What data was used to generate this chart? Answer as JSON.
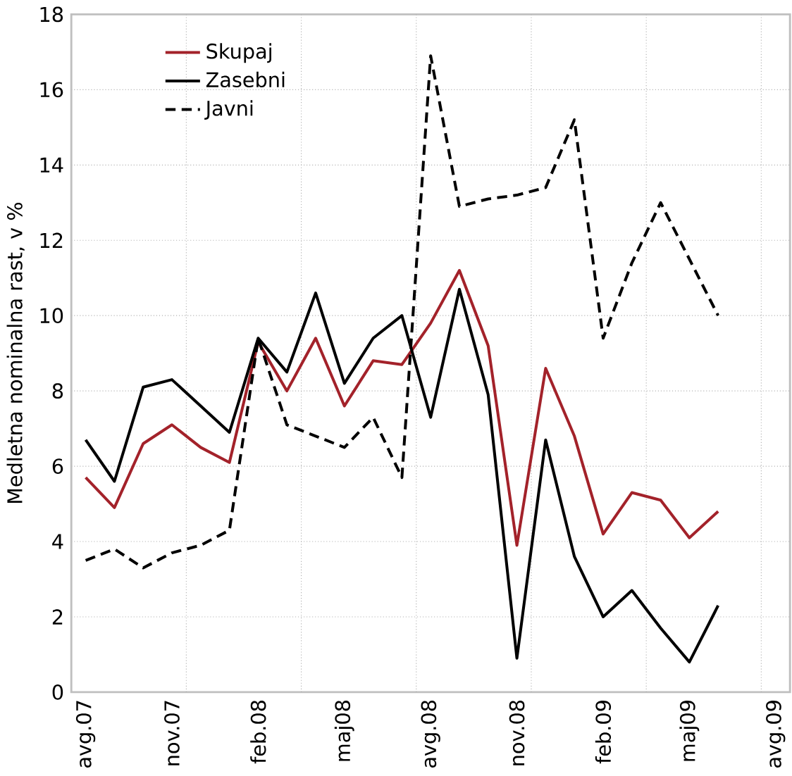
{
  "chart_data": {
    "type": "line",
    "ylabel": "Medletna nominalna rast, v %",
    "categories": [
      "avg.07",
      null,
      null,
      "nov.07",
      null,
      null,
      "feb.08",
      null,
      null,
      "maj08",
      null,
      null,
      "avg.08",
      null,
      null,
      "nov.08",
      null,
      null,
      "feb.09",
      null,
      null,
      "maj09",
      null,
      null,
      "avg.09"
    ],
    "series": [
      {
        "name": "Skupaj",
        "color": "#a3222a",
        "line_style": "solid",
        "values": [
          5.7,
          4.9,
          6.6,
          7.1,
          6.5,
          6.1,
          9.3,
          8.0,
          9.4,
          7.6,
          8.8,
          8.7,
          9.8,
          11.2,
          9.2,
          3.9,
          8.6,
          6.8,
          4.2,
          5.3,
          5.1,
          4.1,
          4.8,
          null,
          null
        ]
      },
      {
        "name": "Zasebni",
        "color": "#000000",
        "line_style": "solid",
        "values": [
          6.7,
          5.6,
          8.1,
          8.3,
          7.6,
          6.9,
          9.4,
          8.5,
          10.6,
          8.2,
          9.4,
          10.0,
          7.3,
          10.7,
          7.9,
          0.9,
          6.7,
          3.6,
          2.0,
          2.7,
          1.7,
          0.8,
          2.3,
          null,
          null
        ]
      },
      {
        "name": "Javni",
        "color": "#000000",
        "line_style": "dashed",
        "values": [
          3.5,
          3.8,
          3.3,
          3.7,
          3.9,
          4.3,
          9.4,
          7.1,
          6.8,
          6.5,
          7.3,
          5.7,
          16.9,
          12.9,
          13.1,
          13.2,
          13.4,
          15.2,
          9.4,
          11.4,
          13.0,
          11.5,
          10.0,
          null,
          null
        ]
      }
    ],
    "ylim": [
      0,
      18
    ],
    "yticks": [
      0,
      2,
      4,
      6,
      8,
      10,
      12,
      14,
      16,
      18
    ],
    "grid": true,
    "legend": "top left",
    "marker": "none"
  }
}
